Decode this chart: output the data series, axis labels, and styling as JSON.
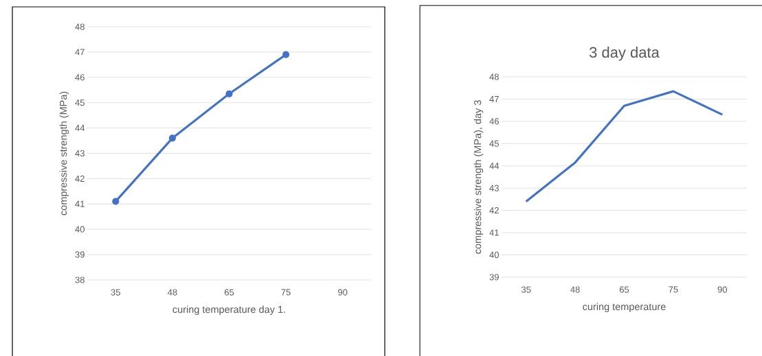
{
  "chart_data": [
    {
      "type": "line",
      "xlabel": "curing temperature day 1.",
      "ylabel": "compressive strength (MPa)",
      "categories": [
        "35",
        "48",
        "65",
        "75",
        "90"
      ],
      "values": [
        41.1,
        43.6,
        45.35,
        46.9,
        null
      ],
      "color": "#4472c4",
      "ylim": [
        38,
        48
      ],
      "yticks": [
        38,
        39,
        40,
        41,
        42,
        43,
        44,
        45,
        46,
        47,
        48
      ],
      "grid": "y",
      "marker": "circle"
    },
    {
      "type": "line",
      "title": "3 day data",
      "xlabel": "curing temperature",
      "ylabel": "compressive strength (MPa), day 3",
      "categories": [
        "35",
        "48",
        "65",
        "75",
        "90"
      ],
      "values": [
        42.4,
        44.15,
        46.7,
        47.35,
        46.3
      ],
      "color": "#4472c4",
      "ylim": [
        39,
        48
      ],
      "yticks": [
        39,
        40,
        41,
        42,
        43,
        44,
        45,
        46,
        47,
        48
      ],
      "grid": "y",
      "marker": "none"
    }
  ]
}
